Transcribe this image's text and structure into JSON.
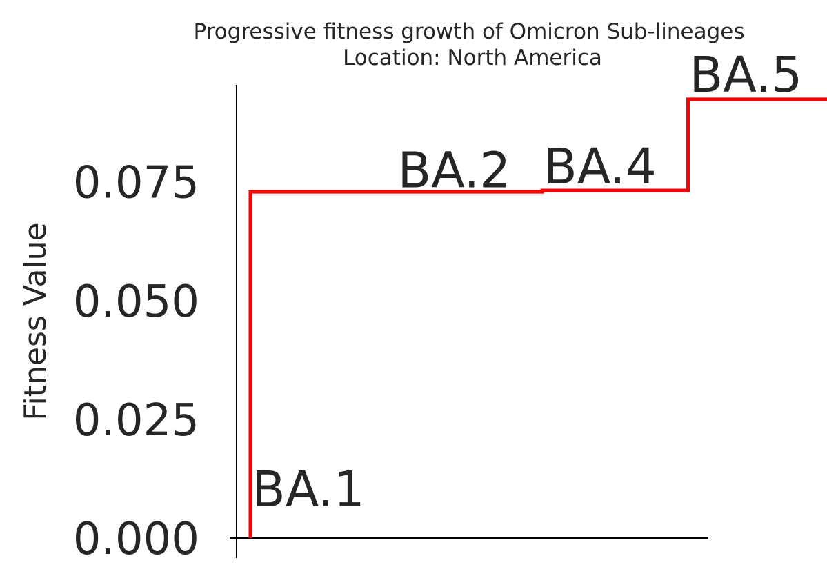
{
  "chart_data": {
    "type": "line",
    "title": "Progressive fitness growth of Omicron Sub-lineages",
    "subtitle": "Location: North America",
    "xlabel": "",
    "ylabel": "Fitness Value",
    "x": [
      "BA.1",
      "BA.2",
      "BA.4",
      "BA.5"
    ],
    "series": [
      {
        "values": [
          0.0,
          0.073,
          0.073,
          0.0925
        ],
        "color": "#ff0000",
        "steps": [
          {
            "y": 0.0,
            "y_next": 0.0729
          },
          {
            "y": 0.0729,
            "y_next": 0.0732
          },
          {
            "y": 0.0732,
            "y_next": 0.0924
          },
          {
            "y": 0.0924,
            "y_next": null
          }
        ]
      }
    ],
    "ylim": [
      0.0,
      0.0955
    ],
    "yticks": [
      "0.000",
      "0.025",
      "0.050",
      "0.075"
    ],
    "ytick_values": [
      0.0,
      0.025,
      0.05,
      0.075
    ],
    "point_labels": [
      "BA.1",
      "BA.2",
      "BA.4",
      "BA.5"
    ],
    "grid": false,
    "legend": "none"
  }
}
